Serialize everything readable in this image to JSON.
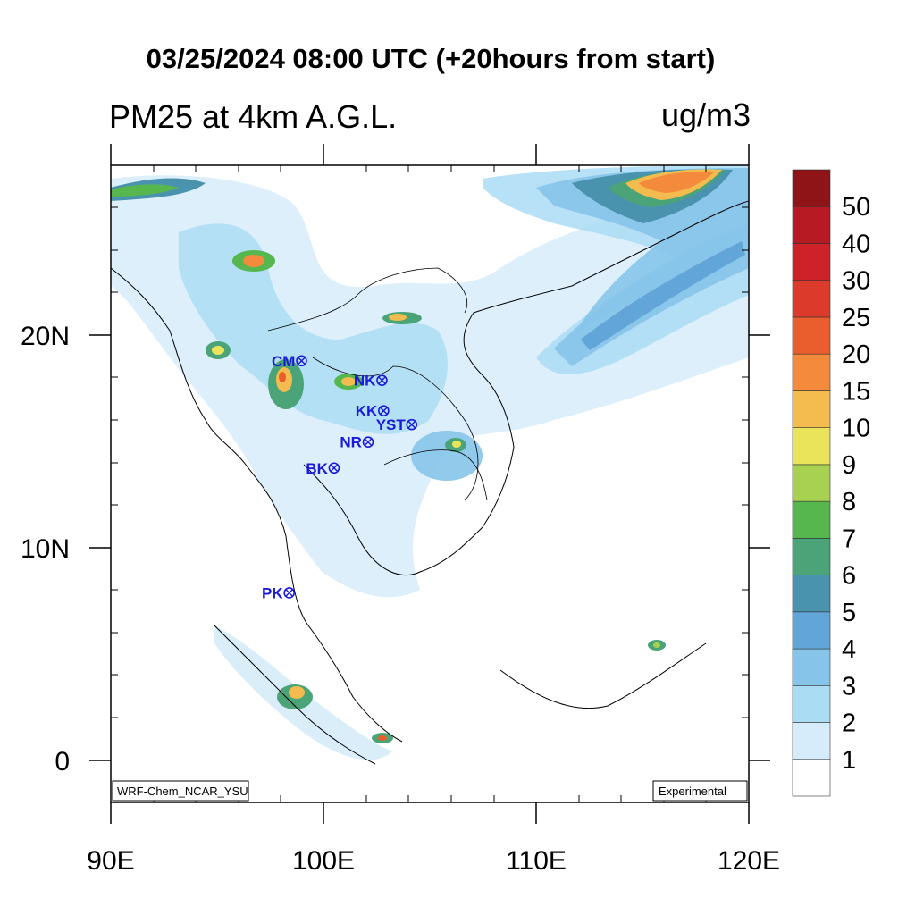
{
  "title": "03/25/2024 08:00 UTC (+20hours from start)",
  "subtitle": "PM25 at 4km A.G.L.",
  "units": "ug/m3",
  "axes": {
    "lon_ticks": [
      {
        "lon": 90,
        "label": "90E"
      },
      {
        "lon": 100,
        "label": "100E"
      },
      {
        "lon": 110,
        "label": "110E"
      },
      {
        "lon": 120,
        "label": "120E"
      }
    ],
    "lat_ticks": [
      {
        "lat": 20,
        "label": "20N"
      },
      {
        "lat": 10,
        "label": "10N"
      },
      {
        "lat": 0,
        "label": "0"
      }
    ]
  },
  "credit_left": "WRF-Chem_NCAR_YSU",
  "credit_right": "Experimental",
  "legend": {
    "labels": [
      "1",
      "2",
      "3",
      "4",
      "5",
      "6",
      "7",
      "8",
      "9",
      "10",
      "15",
      "20",
      "25",
      "30",
      "40",
      "50"
    ],
    "colors": [
      "#ffffff",
      "#d6ecfa",
      "#aadcf4",
      "#86c4ea",
      "#62a6d9",
      "#4a93ae",
      "#4aa478",
      "#56b74e",
      "#a8d152",
      "#e9e45a",
      "#f4bb4e",
      "#f48a3c",
      "#ea5e2d",
      "#dc3a2a",
      "#cc2228",
      "#b71a22",
      "#8e1418"
    ]
  },
  "sites": [
    {
      "code": "CM",
      "lon": 98.97,
      "lat": 18.79
    },
    {
      "code": "NK",
      "lon": 102.75,
      "lat": 17.87
    },
    {
      "code": "KK",
      "lon": 102.83,
      "lat": 16.44
    },
    {
      "code": "YST",
      "lon": 104.15,
      "lat": 15.79
    },
    {
      "code": "NR",
      "lon": 102.1,
      "lat": 14.97
    },
    {
      "code": "BK",
      "lon": 100.5,
      "lat": 13.75
    },
    {
      "code": "PK",
      "lon": 98.39,
      "lat": 7.88
    }
  ]
}
